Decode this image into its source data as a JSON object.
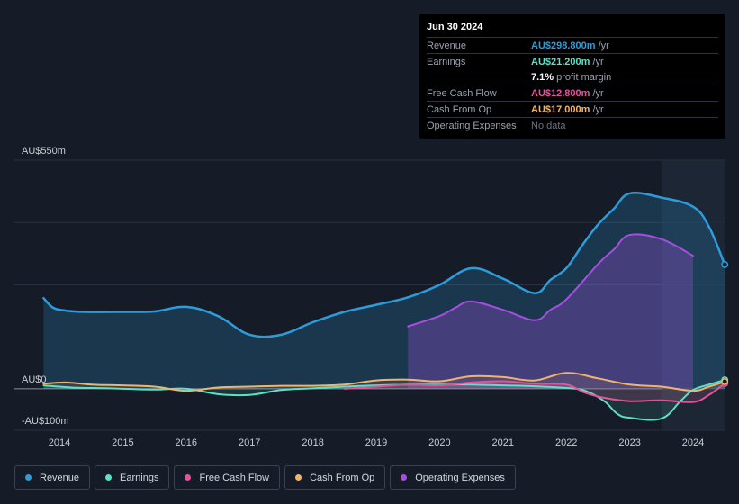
{
  "tooltip": {
    "date": "Jun 30 2024",
    "rows": [
      {
        "label": "Revenue",
        "value": "AU$298.800m",
        "unit": "/yr",
        "color": "#2d9cdb"
      },
      {
        "label": "Earnings",
        "value": "AU$21.200m",
        "unit": "/yr",
        "color": "#5ce0c6"
      },
      {
        "label": "",
        "value": "7.1%",
        "unit": "profit margin",
        "color": "#ffffff"
      },
      {
        "label": "Free Cash Flow",
        "value": "AU$12.800m",
        "unit": "/yr",
        "color": "#e0559a"
      },
      {
        "label": "Cash From Op",
        "value": "AU$17.000m",
        "unit": "/yr",
        "color": "#f0b46c"
      },
      {
        "label": "Operating Expenses",
        "value": "No data",
        "unit": "",
        "color": "#6b7280"
      }
    ]
  },
  "legend": [
    {
      "label": "Revenue",
      "color": "#2d9cdb"
    },
    {
      "label": "Earnings",
      "color": "#5ce0c6"
    },
    {
      "label": "Free Cash Flow",
      "color": "#e0559a"
    },
    {
      "label": "Cash From Op",
      "color": "#f0b46c"
    },
    {
      "label": "Operating Expenses",
      "color": "#a74ee0"
    }
  ],
  "chart_data": {
    "type": "area",
    "title": "",
    "xlabel": "",
    "ylabel": "",
    "ylim": [
      -100,
      550
    ],
    "xlim": [
      2013.75,
      2024.5
    ],
    "y_tick_labels": [
      {
        "value": 550,
        "label": "AU$550m"
      },
      {
        "value": 0,
        "label": "AU$0"
      },
      {
        "value": -100,
        "label": "-AU$100m"
      }
    ],
    "x_tick_labels": [
      "2014",
      "2015",
      "2016",
      "2017",
      "2018",
      "2019",
      "2020",
      "2021",
      "2022",
      "2023",
      "2024"
    ],
    "x_ticks": [
      2014,
      2015,
      2016,
      2017,
      2018,
      2019,
      2020,
      2021,
      2022,
      2023,
      2024
    ],
    "series": [
      {
        "name": "Revenue",
        "color": "#2d9cdb",
        "x": [
          2013.75,
          2013.9,
          2014.1,
          2014.4,
          2015,
          2015.5,
          2016,
          2016.5,
          2017,
          2017.5,
          2018,
          2018.5,
          2019,
          2019.5,
          2020,
          2020.5,
          2021,
          2021.5,
          2021.75,
          2022,
          2022.25,
          2022.5,
          2022.75,
          2023,
          2023.5,
          2024,
          2024.25,
          2024.5
        ],
        "values": [
          218,
          195,
          188,
          185,
          185,
          186,
          197,
          175,
          130,
          130,
          160,
          185,
          202,
          220,
          250,
          290,
          265,
          230,
          262,
          290,
          345,
          395,
          433,
          470,
          460,
          438,
          390,
          298.8
        ]
      },
      {
        "name": "Operating Expenses",
        "color": "#a74ee0",
        "x": [
          2019.5,
          2020,
          2020.25,
          2020.5,
          2021,
          2021.5,
          2021.75,
          2022,
          2022.5,
          2022.75,
          2023,
          2023.5,
          2024
        ],
        "values": [
          150,
          175,
          195,
          210,
          190,
          165,
          190,
          215,
          300,
          335,
          370,
          360,
          320
        ]
      },
      {
        "name": "Earnings",
        "color": "#5ce0c6",
        "x": [
          2013.75,
          2014.2,
          2014.8,
          2015.5,
          2016,
          2016.5,
          2017,
          2017.5,
          2018,
          2018.5,
          2019,
          2019.5,
          2020,
          2020.5,
          2021,
          2021.5,
          2022,
          2022.3,
          2022.6,
          2022.8,
          2023,
          2023.5,
          2023.8,
          2024,
          2024.25,
          2024.5
        ],
        "values": [
          8,
          3,
          1,
          -2,
          0,
          -13,
          -15,
          -3,
          1,
          5,
          8,
          10,
          10,
          10,
          8,
          6,
          2,
          -5,
          -30,
          -60,
          -70,
          -72,
          -30,
          -3,
          10,
          21.2
        ]
      },
      {
        "name": "Free Cash Flow",
        "color": "#e0559a",
        "x": [
          2018.5,
          2019,
          2019.5,
          2020,
          2020.5,
          2021,
          2021.5,
          2022,
          2022.3,
          2022.6,
          2023,
          2023.5,
          2024,
          2024.25,
          2024.5
        ],
        "values": [
          0,
          5,
          10,
          8,
          15,
          18,
          12,
          10,
          -10,
          -22,
          -30,
          -28,
          -32,
          -15,
          12.8
        ]
      },
      {
        "name": "Cash From Op",
        "color": "#f0b46c",
        "x": [
          2013.75,
          2014.1,
          2014.5,
          2015,
          2015.5,
          2016,
          2016.5,
          2017,
          2017.5,
          2018,
          2018.5,
          2019,
          2019.5,
          2020,
          2020.5,
          2021,
          2021.5,
          2022,
          2022.5,
          2023,
          2023.5,
          2024,
          2024.25,
          2024.5
        ],
        "values": [
          12,
          15,
          10,
          8,
          5,
          -5,
          3,
          5,
          7,
          7,
          10,
          20,
          22,
          18,
          30,
          28,
          20,
          38,
          25,
          10,
          5,
          -5,
          5,
          17
        ]
      }
    ]
  }
}
